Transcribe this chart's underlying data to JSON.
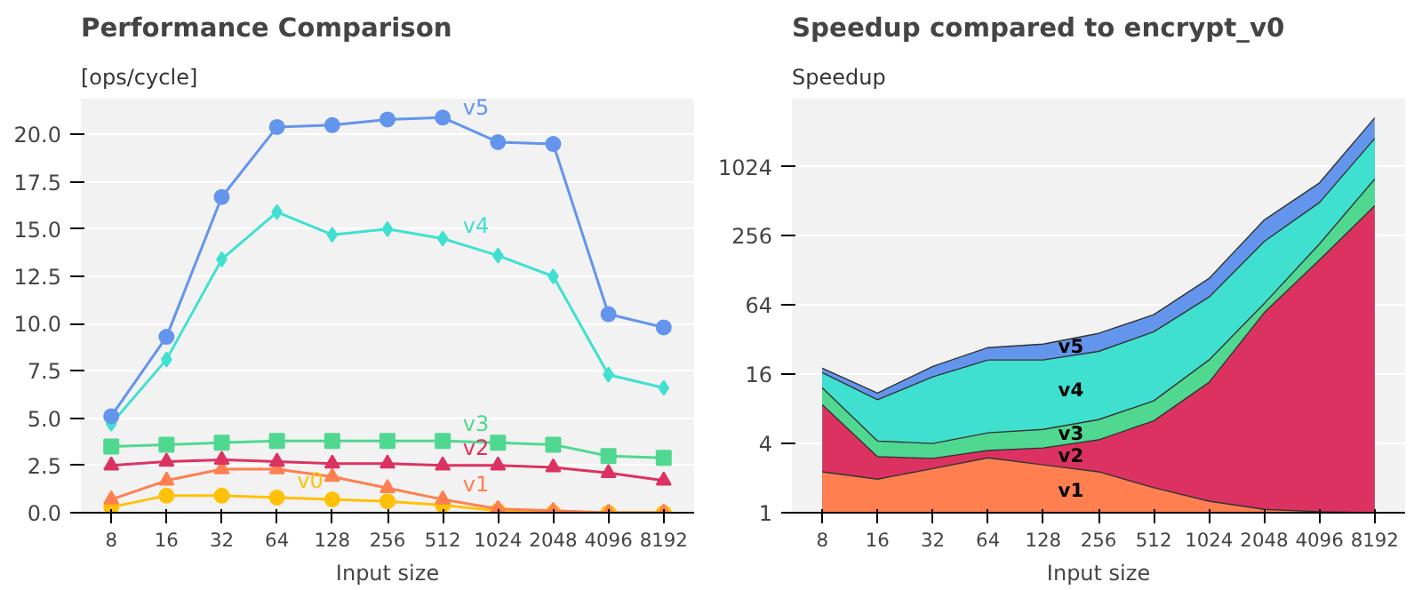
{
  "chart_data": [
    {
      "type": "line",
      "title": "Performance Comparison",
      "ylabel": "[ops/cycle]",
      "xlabel": "Input size",
      "categories": [
        "8",
        "16",
        "32",
        "64",
        "128",
        "256",
        "512",
        "1024",
        "2048",
        "4096",
        "8192"
      ],
      "ylim": [
        0,
        21.9
      ],
      "yticks": [
        {
          "value": 0,
          "label": "0.0"
        },
        {
          "value": 2.5,
          "label": "2.5"
        },
        {
          "value": 5,
          "label": "5.0"
        },
        {
          "value": 7.5,
          "label": "7.5"
        },
        {
          "value": 10,
          "label": "10.0"
        },
        {
          "value": 12.5,
          "label": "12.5"
        },
        {
          "value": 15,
          "label": "15.0"
        },
        {
          "value": 17.5,
          "label": "17.5"
        },
        {
          "value": 20,
          "label": "20.0"
        }
      ],
      "grid": "y",
      "line_style": "solid",
      "series": [
        {
          "name": "v0",
          "color": "#ffc107",
          "marker": "circle",
          "values": [
            0.3,
            0.9,
            0.9,
            0.8,
            0.7,
            0.6,
            0.4,
            0.1,
            0.0,
            0.0,
            0.0
          ]
        },
        {
          "name": "v1",
          "color": "#ff7f50",
          "marker": "triangle",
          "values": [
            0.7,
            1.7,
            2.3,
            2.3,
            1.9,
            1.3,
            0.7,
            0.2,
            0.1,
            0.0,
            0.0
          ]
        },
        {
          "name": "v2",
          "color": "#dc3262",
          "marker": "triangle",
          "values": [
            2.5,
            2.7,
            2.8,
            2.7,
            2.6,
            2.6,
            2.5,
            2.5,
            2.4,
            2.1,
            1.7
          ]
        },
        {
          "name": "v3",
          "color": "#50d890",
          "marker": "square",
          "values": [
            3.5,
            3.6,
            3.7,
            3.8,
            3.8,
            3.8,
            3.8,
            3.7,
            3.6,
            3.0,
            2.9
          ]
        },
        {
          "name": "v4",
          "color": "#40e0d0",
          "marker": "diamond",
          "values": [
            4.7,
            8.1,
            13.4,
            15.9,
            14.7,
            15.0,
            14.5,
            13.6,
            12.5,
            7.3,
            6.6
          ]
        },
        {
          "name": "v5",
          "color": "#6495ed",
          "marker": "circle",
          "values": [
            5.1,
            9.3,
            16.7,
            20.4,
            20.5,
            20.8,
            20.9,
            19.6,
            19.5,
            10.5,
            9.8
          ]
        }
      ]
    },
    {
      "type": "area",
      "title": "Speedup compared to encrypt_v0",
      "ylabel": "Speedup",
      "xlabel": "Input size",
      "categories": [
        "8",
        "16",
        "32",
        "64",
        "128",
        "256",
        "512",
        "1024",
        "2048",
        "4096",
        "8192"
      ],
      "log": "y",
      "ylim": [
        1,
        4000
      ],
      "yticks": [
        1,
        4,
        16,
        64,
        256,
        1024
      ],
      "grid": "y",
      "series": [
        {
          "name": "v1",
          "color": "#ff7f50",
          "values": [
            2.27,
            1.96,
            2.42,
            3.0,
            2.61,
            2.27,
            1.65,
            1.26,
            1.07,
            1.02,
            1.0
          ]
        },
        {
          "name": "v2",
          "color": "#dc3262",
          "values": [
            8.7,
            3.07,
            2.97,
            3.48,
            3.66,
            4.3,
            6.3,
            13.6,
            55,
            158,
            468
          ]
        },
        {
          "name": "v3",
          "color": "#50d890",
          "values": [
            12.2,
            4.2,
            4.0,
            4.95,
            5.3,
            6.45,
            9.4,
            21.3,
            66,
            218,
            800
          ]
        },
        {
          "name": "v4",
          "color": "#40e0d0",
          "values": [
            16.5,
            9.6,
            15.2,
            21.3,
            21.3,
            25.3,
            37.5,
            75,
            229,
            500,
            1800
          ]
        },
        {
          "name": "v5",
          "color": "#6495ed",
          "values": [
            18.1,
            11,
            18.7,
            27.3,
            29.3,
            36.3,
            52.8,
            109,
            352,
            740,
            2720
          ]
        }
      ]
    }
  ]
}
